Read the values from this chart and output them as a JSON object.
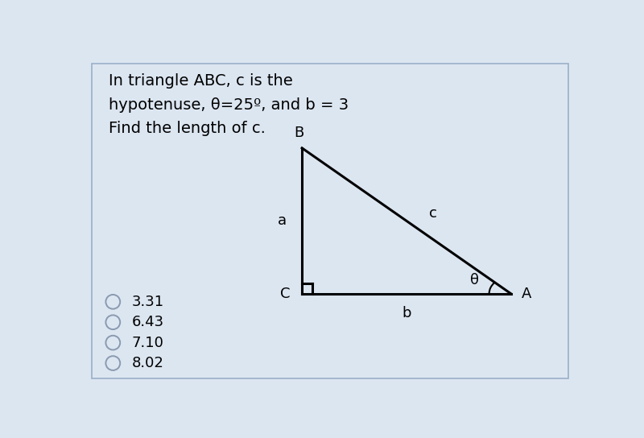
{
  "background_color": "#dce6f1",
  "border_color": "#9aafc7",
  "title_lines": [
    "In triangle ABC, c is the",
    "hypotenuse, θ=25º, and b = 3",
    "Find the length of c."
  ],
  "label_B": "B",
  "label_C": "C",
  "label_A": "A",
  "label_a": "a",
  "label_b": "b",
  "label_c": "c",
  "label_theta": "θ",
  "choices": [
    "3.31",
    "6.43",
    "7.10",
    "8.02"
  ],
  "text_color": "#000000",
  "triangle_color": "#000000",
  "title_fontsize": 14,
  "label_fontsize": 13,
  "choice_fontsize": 13,
  "C": [
    3.55,
    1.55
  ],
  "A": [
    6.9,
    1.55
  ],
  "B": [
    3.55,
    3.9
  ]
}
